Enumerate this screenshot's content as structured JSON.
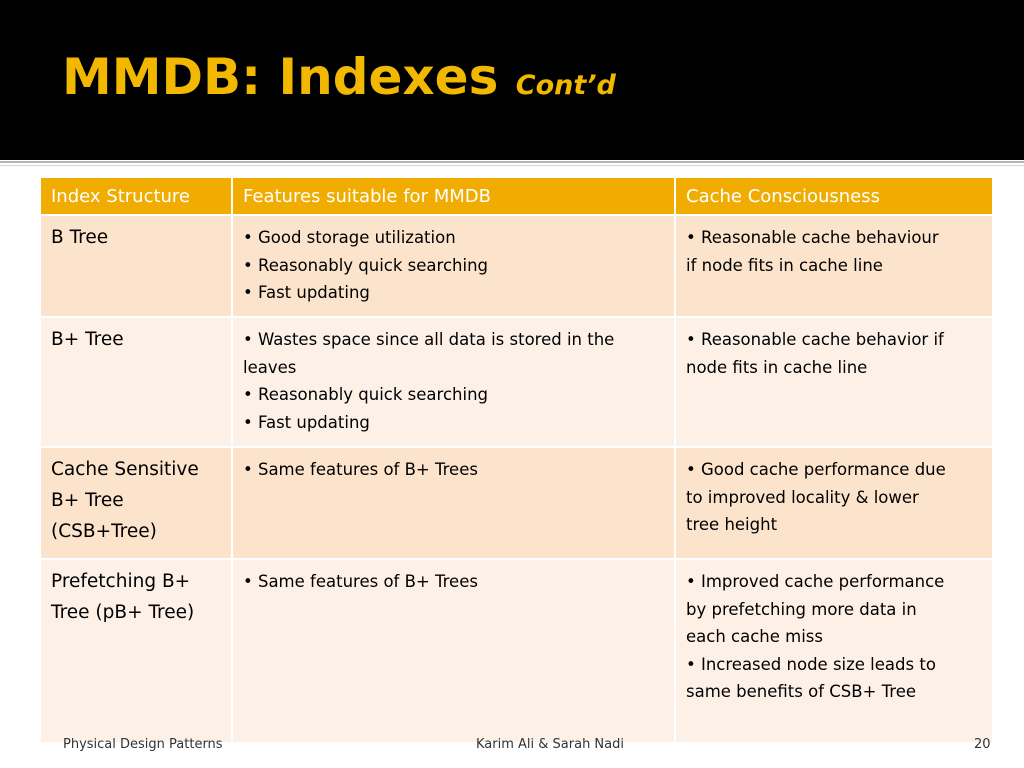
{
  "title": {
    "main": "MMDB: Indexes",
    "sub": "Cont’d"
  },
  "table": {
    "headers": [
      "Index Structure",
      "Features suitable for MMDB",
      "Cache Consciousness"
    ],
    "rows": [
      {
        "name": "B Tree",
        "features": [
          "• Good storage utilization",
          "• Reasonably quick searching",
          "• Fast updating"
        ],
        "cache": [
          "• Reasonable cache behaviour",
          "if node fits in cache line"
        ]
      },
      {
        "name": "B+ Tree",
        "features": [
          "• Wastes space since all data is stored in the",
          "leaves",
          "• Reasonably quick searching",
          "• Fast updating"
        ],
        "cache": [
          "• Reasonable cache behavior if",
          "node fits in cache line"
        ]
      },
      {
        "name": [
          "Cache Sensitive",
          "B+ Tree",
          "(CSB+Tree)"
        ],
        "features": [
          "• Same features of B+ Trees"
        ],
        "cache": [
          "• Good cache performance due",
          "to improved locality & lower",
          "tree height"
        ]
      },
      {
        "name": [
          "Prefetching B+",
          "Tree (pB+ Tree)"
        ],
        "features": [
          "• Same features of B+ Trees"
        ],
        "cache": [
          "• Improved cache performance",
          "by prefetching more data in",
          "each cache miss",
          "• Increased node size leads to",
          "same benefits of CSB+ Tree"
        ]
      }
    ]
  },
  "footer": {
    "left": "Physical Design Patterns",
    "center": "Karim Ali & Sarah Nadi",
    "page": "20"
  },
  "colors": {
    "header_bg": "#000000",
    "title": "#f2b800",
    "table_header": "#f0ac00",
    "row_odd": "#fbe3cc",
    "row_even": "#fdf1e7"
  }
}
